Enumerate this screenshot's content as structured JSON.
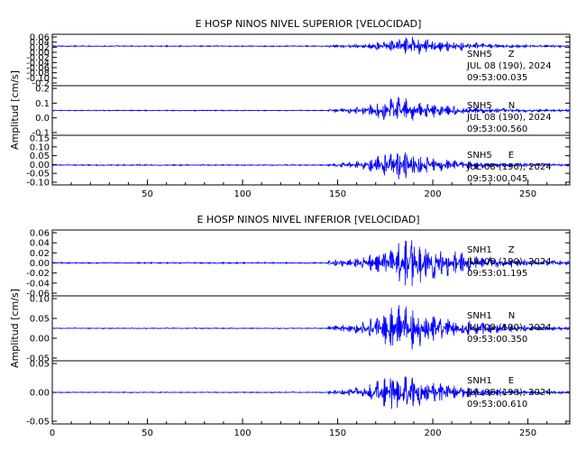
{
  "chart_data": [
    {
      "type": "line",
      "title": "E HOSP NINOS NIVEL SUPERIOR [VELOCIDAD]",
      "ylabel": "Amplitud [cm/s]",
      "xlim": [
        0,
        272
      ],
      "x_ticks": [
        50,
        100,
        150,
        200,
        250
      ],
      "line_color": "#0000ff",
      "panels": [
        {
          "station": "SNH5",
          "component": "Z",
          "date": "JUL 08 (190), 2024",
          "time": "09:53:00.035",
          "ylim": [
            -0.2,
            0.06
          ],
          "y_tick_labels": [
            "0.06",
            "0.04",
            "0.02",
            "0.00",
            "-0.02",
            "-0.04",
            "-0.06",
            "-0.08",
            "-0.10",
            "-0.2"
          ],
          "signal": {
            "onset": 145,
            "peak_time": 188,
            "peak_amp": 0.05,
            "noise_amp": 0.003
          }
        },
        {
          "station": "SNH5",
          "component": "N",
          "date": "JUL 08 (190), 2024",
          "time": "09:53:00.560",
          "ylim": [
            -0.2,
            0.2
          ],
          "y_tick_labels": [
            "0.2",
            "0.1",
            "0.0",
            "-0.1"
          ],
          "signal": {
            "onset": 145,
            "peak_time": 180,
            "peak_amp": 0.12,
            "noise_amp": 0.004
          }
        },
        {
          "station": "SNH5",
          "component": "E",
          "date": "JUL 08 (190), 2024",
          "time": "09:53:00.045",
          "ylim": [
            -0.1,
            0.15
          ],
          "y_tick_labels": [
            "0.15",
            "0.10",
            "0.05",
            "0.00",
            "-0.05",
            "-0.10"
          ],
          "signal": {
            "onset": 145,
            "peak_time": 180,
            "peak_amp": 0.08,
            "noise_amp": 0.003
          }
        }
      ]
    },
    {
      "type": "line",
      "title": "E HOSP NINOS NIVEL INFERIOR [VELOCIDAD]",
      "ylabel": "Amplitud [cm/s]",
      "xlim": [
        0,
        272
      ],
      "x_ticks": [
        0,
        50,
        100,
        150,
        200,
        250
      ],
      "line_color": "#0000ff",
      "panels": [
        {
          "station": "SNH1",
          "component": "Z",
          "date": "JUL 08 (190), 2024",
          "time": "09:53:01.195",
          "ylim": [
            -0.06,
            0.06
          ],
          "y_tick_labels": [
            "0.06",
            "0.04",
            "0.02",
            "0.00",
            "-0.02",
            "-0.04",
            "-0.06"
          ],
          "signal": {
            "onset": 145,
            "peak_time": 188,
            "peak_amp": 0.05,
            "noise_amp": 0.0012
          }
        },
        {
          "station": "SNH1",
          "component": "N",
          "date": "JUL 08 (190), 2024",
          "time": "09:53:00.350",
          "ylim": [
            -0.1,
            0.1
          ],
          "y_tick_labels": [
            "0.10",
            "0.05",
            "0.00",
            "-0.05"
          ],
          "signal": {
            "onset": 145,
            "peak_time": 183,
            "peak_amp": 0.085,
            "noise_amp": 0.0015
          }
        },
        {
          "station": "SNH1",
          "component": "E",
          "date": "JUL 08 (190), 2024",
          "time": "09:53:00.610",
          "ylim": [
            -0.1,
            0.1
          ],
          "y_tick_labels": [
            "0.05",
            "0.00",
            "-0.05"
          ],
          "signal": {
            "onset": 145,
            "peak_time": 180,
            "peak_amp": 0.07,
            "noise_amp": 0.0015
          }
        }
      ]
    }
  ]
}
